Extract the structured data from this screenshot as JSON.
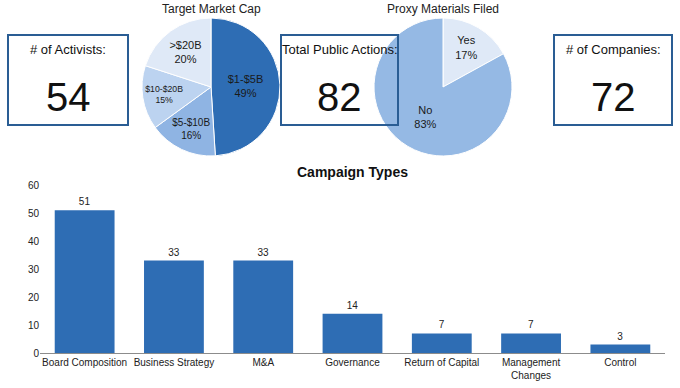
{
  "stats": [
    {
      "label": "# of Activists:",
      "value": 54
    },
    {
      "label": "Total Public Actions:",
      "value": 82
    },
    {
      "label": "# of Companies:",
      "value": 72
    }
  ],
  "chart_data": [
    {
      "type": "pie",
      "title": "Target Market Cap",
      "categories": [
        "$1-$5B",
        "$5-$10B",
        "$10-$20B",
        ">$20B"
      ],
      "values": [
        49,
        16,
        15,
        20
      ],
      "value_labels": [
        "49%",
        "16%",
        "15%",
        "20%"
      ],
      "colors": [
        "#2e6db4",
        "#8fb4e3",
        "#bcd3f0",
        "#dfe9f7"
      ],
      "data_labels": true
    },
    {
      "type": "pie",
      "title": "Proxy Materials Filed",
      "categories": [
        "Yes",
        "No"
      ],
      "values": [
        17,
        83
      ],
      "value_labels": [
        "17%",
        "83%"
      ],
      "colors": [
        "#dfe9f7",
        "#95b9e4"
      ],
      "data_labels": true
    },
    {
      "type": "bar",
      "title": "Campaign Types",
      "categories": [
        "Board Composition",
        "Business Strategy",
        "M&A",
        "Governance",
        "Return of Capital",
        "Management Changes",
        "Control"
      ],
      "values": [
        51,
        33,
        33,
        14,
        7,
        7,
        3
      ],
      "color": "#2e6db4",
      "ylim": [
        0,
        60
      ],
      "yticks": [
        0,
        10,
        20,
        30,
        40,
        50,
        60
      ],
      "grid": false,
      "data_labels": true
    }
  ]
}
